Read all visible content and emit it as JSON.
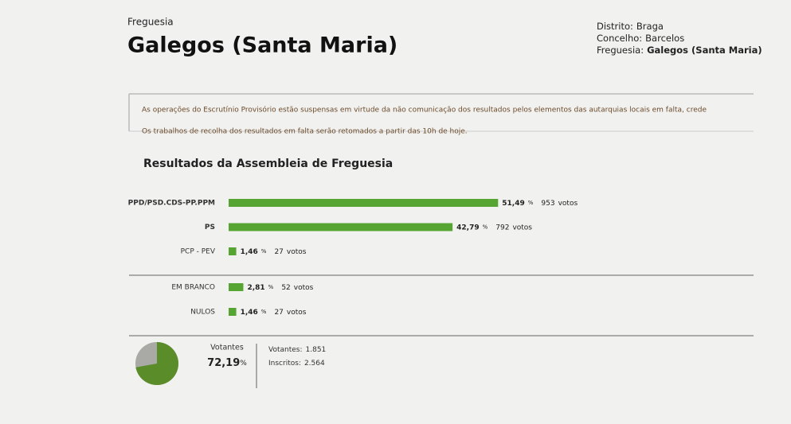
{
  "header": {
    "kicker": "Freguesia",
    "title": "Galegos (Santa Maria)",
    "location": [
      {
        "label": "Distrito:",
        "value": "Braga"
      },
      {
        "label": "Concelho:",
        "value": "Barcelos"
      },
      {
        "label": "Freguesia:",
        "value": "Galegos (Santa Maria)"
      }
    ]
  },
  "notice": [
    "As operações do Escrutínio Provisório estão suspensas em virtude da não comunicação dos resultados pelos elementos das autarquias locais em falta, crede",
    "Os trabalhos de recolha dos resultados em falta serão retomados a partir das 10h de hoje."
  ],
  "results": {
    "title": "Resultados da Assembleia de Freguesia",
    "percent_sign": "%",
    "votes_unit": "votos",
    "parties": [
      {
        "name": "PPD/PSD.CDS-PP.PPM",
        "percent": {
          "value": 51.49,
          "label": "51,49"
        },
        "votes": 953
      },
      {
        "name": "PS",
        "percent": {
          "value": 42.79,
          "label": "42,79"
        },
        "votes": 792
      },
      {
        "name": "PCP - PEV",
        "percent": {
          "value": 1.46,
          "label": "1,46"
        },
        "votes": 27
      }
    ],
    "other": [
      {
        "name": "EM BRANCO",
        "percent": {
          "value": 2.81,
          "label": "2,81"
        },
        "votes": 52
      },
      {
        "name": "NULOS",
        "percent": {
          "value": 1.46,
          "label": "1,46"
        },
        "votes": 27
      }
    ]
  },
  "turnout": {
    "label": "Votantes",
    "percent": {
      "value": 72.19,
      "label": "72,19"
    },
    "voters_label": "Votantes:",
    "voters": {
      "value": 1851,
      "label": "1.851"
    },
    "registered_label": "Inscritos:",
    "registered": {
      "value": 2564,
      "label": "2.564"
    }
  }
}
